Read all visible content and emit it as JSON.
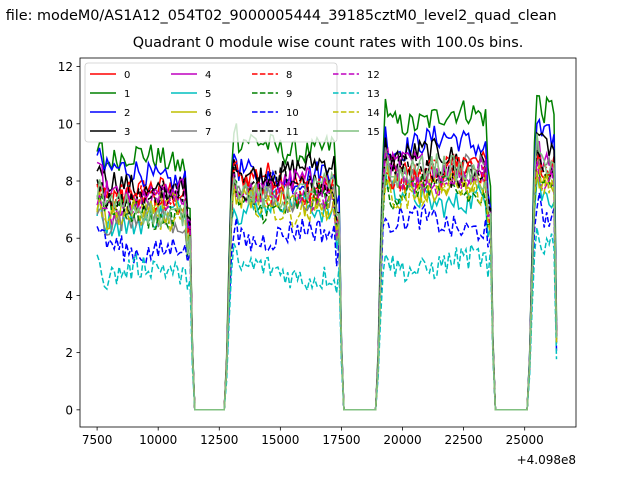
{
  "suptitle": "n file: modeM0/AS1A12_054T02_9000005444_39185cztM0_level2_quad_clean",
  "chart_data": {
    "type": "line",
    "title": "Quadrant 0 module wise count rates with 100.0s bins.",
    "xlabel": "",
    "ylabel": "",
    "x_offset_label": "+4.098e8",
    "xlim": [
      6800,
      27100
    ],
    "ylim": [
      -0.6,
      12.3
    ],
    "xticks": [
      7500,
      10000,
      12500,
      15000,
      17500,
      20000,
      22500,
      25000
    ],
    "yticks": [
      0,
      2,
      4,
      6,
      8,
      10,
      12
    ],
    "x_range": [
      7500,
      26300
    ],
    "bin": 100,
    "gaps": [
      [
        11300,
        12900
      ],
      [
        17400,
        19100
      ],
      [
        23600,
        25300
      ]
    ],
    "legend": {
      "placement": "top-left",
      "ncol": 4
    },
    "series": [
      {
        "name": "0",
        "color": "#ff0000",
        "style": "solid",
        "seg_means": [
          7.5,
          8.0,
          8.4,
          8.5
        ]
      },
      {
        "name": "1",
        "color": "#008000",
        "style": "solid",
        "seg_means": [
          8.7,
          9.2,
          10.2,
          10.4
        ]
      },
      {
        "name": "2",
        "color": "#0000ff",
        "style": "solid",
        "seg_means": [
          8.2,
          8.2,
          9.3,
          9.3
        ]
      },
      {
        "name": "3",
        "color": "#000000",
        "style": "solid",
        "seg_means": [
          7.8,
          8.4,
          8.8,
          9.0
        ]
      },
      {
        "name": "4",
        "color": "#bf00bf",
        "style": "solid",
        "seg_means": [
          7.5,
          7.8,
          8.4,
          8.6
        ]
      },
      {
        "name": "5",
        "color": "#00bfbf",
        "style": "solid",
        "seg_means": [
          6.7,
          7.1,
          7.4,
          7.7
        ]
      },
      {
        "name": "6",
        "color": "#bfbf00",
        "style": "solid",
        "seg_means": [
          7.0,
          7.3,
          7.8,
          8.0
        ]
      },
      {
        "name": "7",
        "color": "#808080",
        "style": "solid",
        "seg_means": [
          6.6,
          7.4,
          8.3,
          8.6
        ]
      },
      {
        "name": "8",
        "color": "#ff0000",
        "style": "dashed",
        "seg_means": [
          7.3,
          7.7,
          8.2,
          8.3
        ]
      },
      {
        "name": "9",
        "color": "#008000",
        "style": "dashed",
        "seg_means": [
          6.9,
          7.2,
          7.6,
          7.9
        ]
      },
      {
        "name": "10",
        "color": "#0000ff",
        "style": "dashed",
        "seg_means": [
          5.7,
          6.1,
          6.5,
          6.7
        ]
      },
      {
        "name": "11",
        "color": "#000000",
        "style": "dashed",
        "seg_means": [
          7.5,
          7.8,
          8.4,
          8.6
        ]
      },
      {
        "name": "12",
        "color": "#bf00bf",
        "style": "dashed",
        "seg_means": [
          7.2,
          7.5,
          8.1,
          8.2
        ]
      },
      {
        "name": "13",
        "color": "#00bfbf",
        "style": "dashed",
        "seg_means": [
          4.8,
          4.8,
          5.1,
          5.9
        ]
      },
      {
        "name": "14",
        "color": "#bfbf00",
        "style": "dashed",
        "seg_means": [
          6.7,
          7.1,
          7.6,
          7.7
        ]
      },
      {
        "name": "15",
        "color": "#80c080",
        "style": "solid",
        "seg_means": [
          7.0,
          7.6,
          8.3,
          8.4
        ]
      }
    ]
  }
}
